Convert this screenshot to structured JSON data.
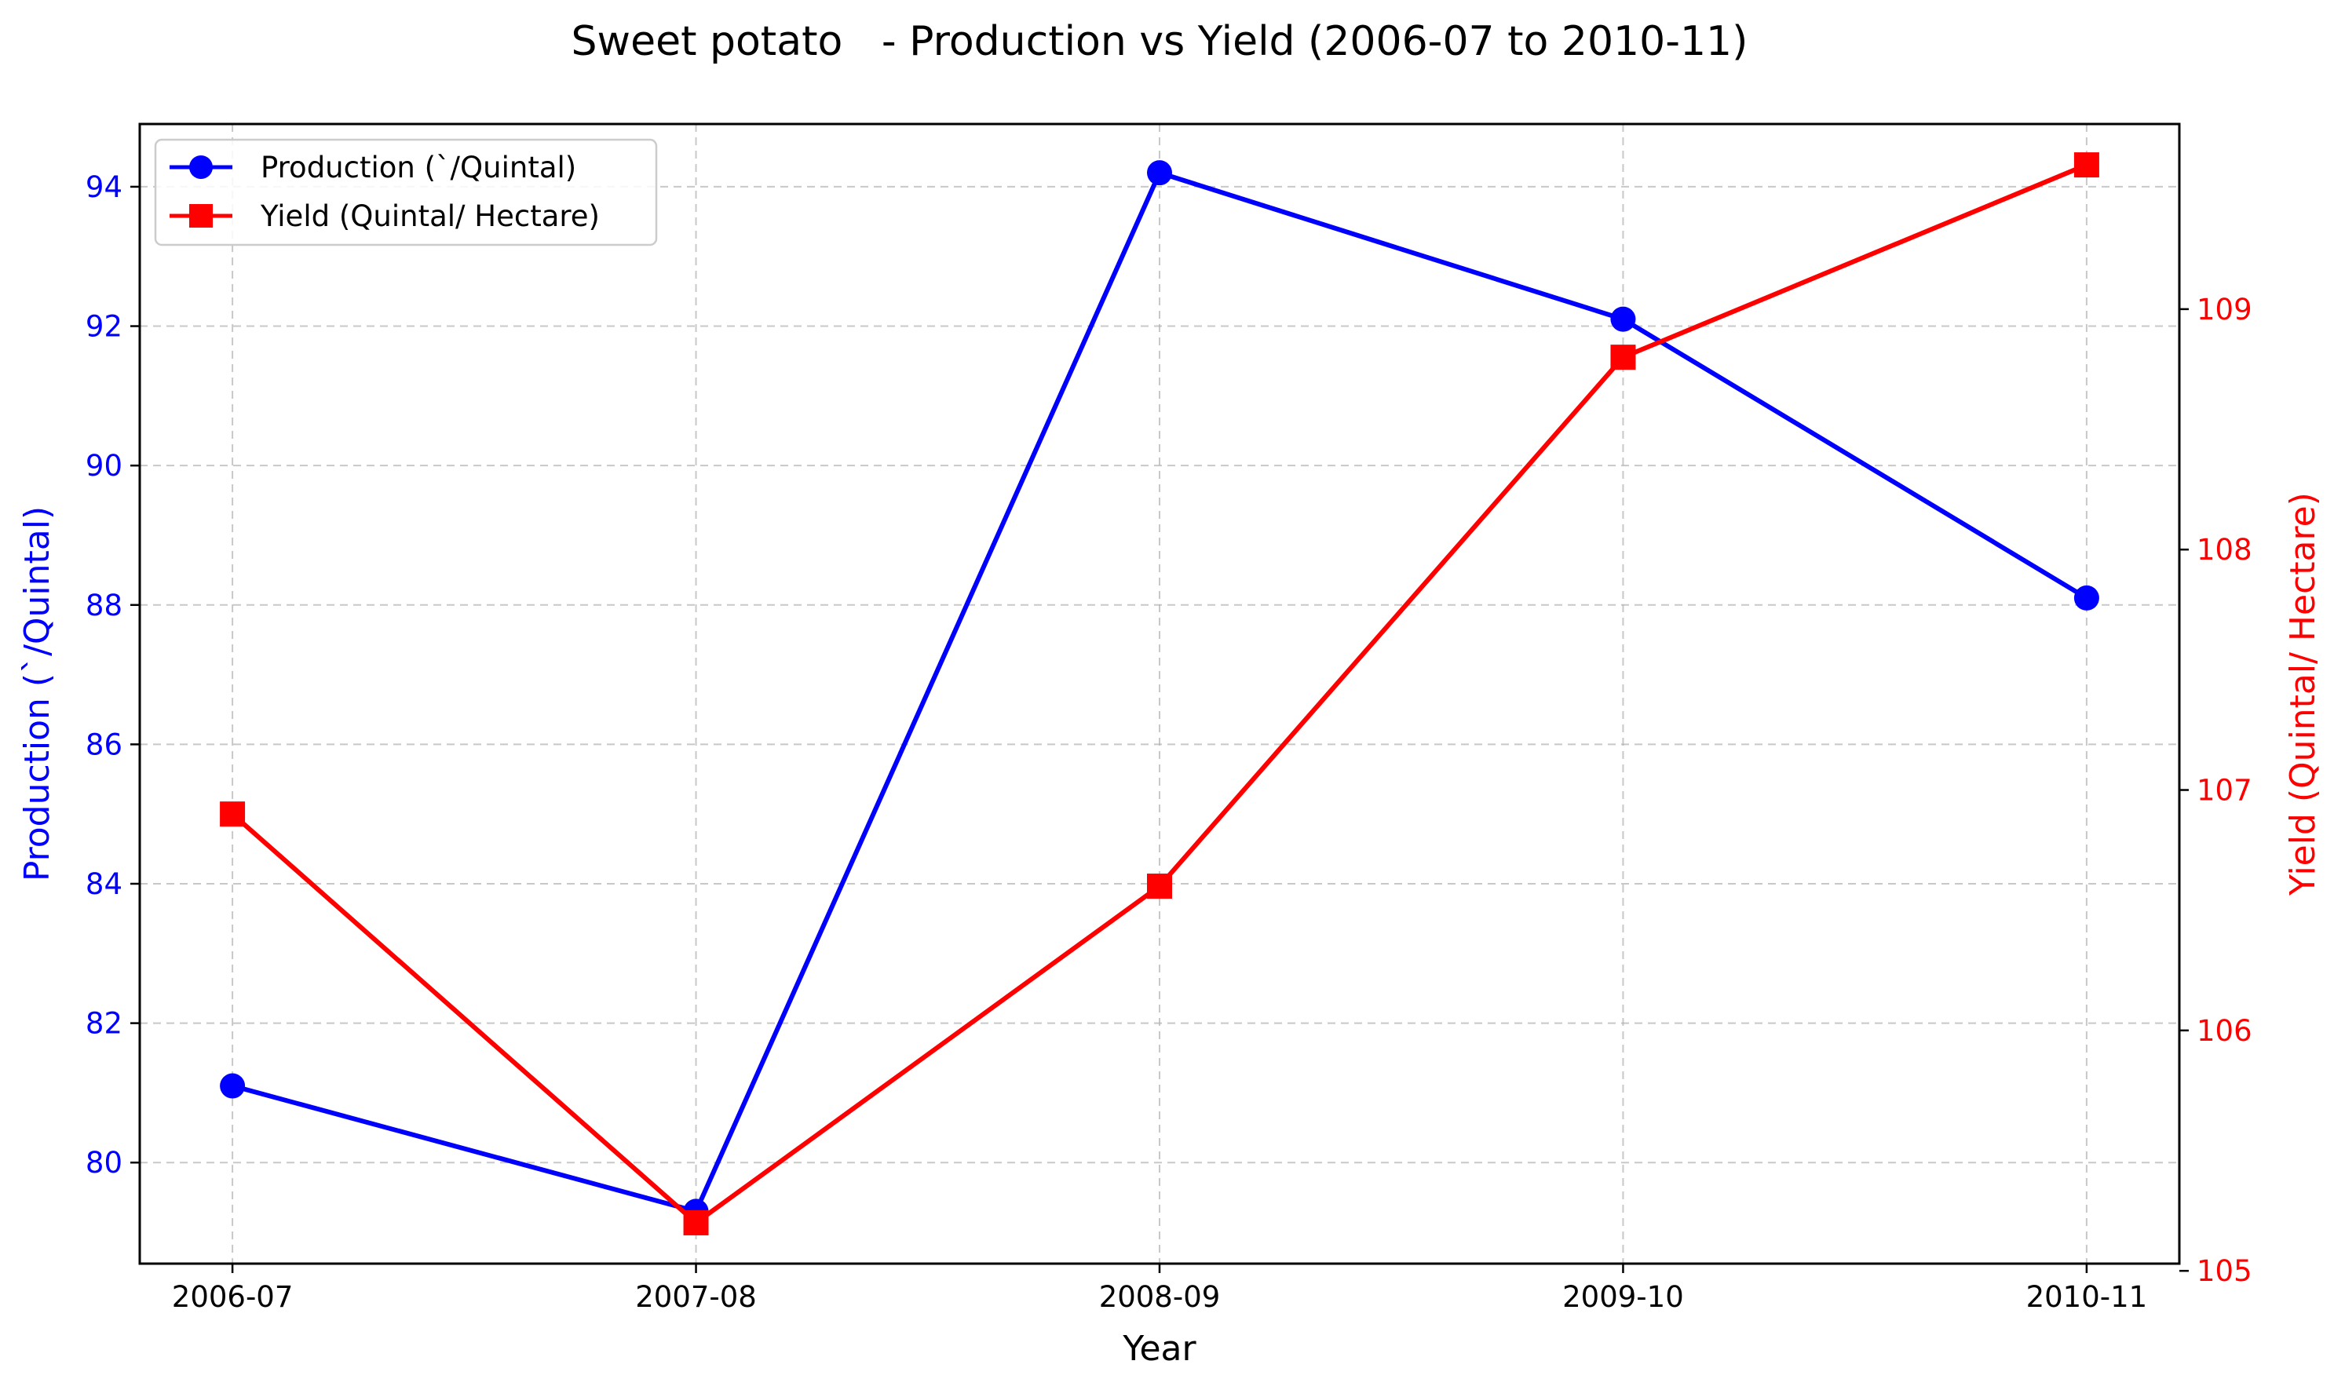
{
  "chart_data": {
    "type": "line",
    "title": "Sweet potato   - Production vs Yield (2006-07 to 2010-11)",
    "xlabel": "Year",
    "categories": [
      "2006-07",
      "2007-08",
      "2008-09",
      "2009-10",
      "2010-11"
    ],
    "left_axis": {
      "label": "Production (`/Quintal)",
      "color": "#0000ff",
      "ylim": [
        78.55,
        94.9
      ],
      "ticks": [
        80,
        82,
        84,
        86,
        88,
        90,
        92,
        94
      ]
    },
    "right_axis": {
      "label": "Yield (Quintal/ Hectare)",
      "color": "#ff0000",
      "ylim": [
        105.03,
        109.77
      ],
      "ticks": [
        105,
        106,
        107,
        108,
        109
      ]
    },
    "series": [
      {
        "name": "Production (`/Quintal)",
        "axis": "left",
        "color": "#0000ff",
        "marker": "circle",
        "values": [
          81.1,
          79.3,
          94.2,
          92.1,
          88.1
        ]
      },
      {
        "name": "Yield (Quintal/ Hectare)",
        "axis": "right",
        "color": "#ff0000",
        "marker": "square",
        "values": [
          106.9,
          105.2,
          106.6,
          108.8,
          109.6
        ]
      }
    ],
    "grid": true,
    "legend_position": "top-left"
  }
}
